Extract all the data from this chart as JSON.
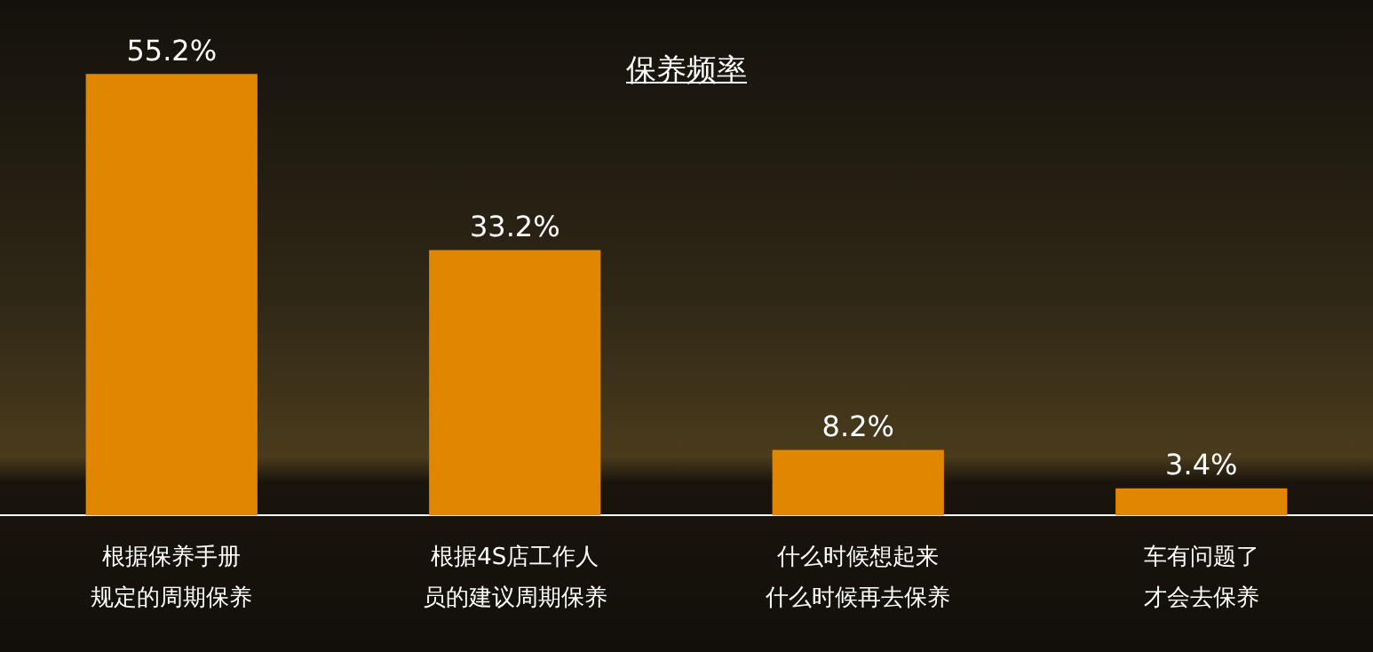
{
  "chart_data": {
    "type": "bar",
    "title": "保养频率",
    "categories": [
      "根据保养手册规定的周期保养",
      "根据4S店工作人员的建议周期保养",
      "什么时候想起来什么时候再去保养",
      "车有问题了才会去保养"
    ],
    "values": [
      55.2,
      33.2,
      8.2,
      3.4
    ],
    "value_labels": [
      "55.2%",
      "33.2%",
      "8.2%",
      "3.4%"
    ],
    "color": "#e08600",
    "grid": false,
    "legend": false
  }
}
